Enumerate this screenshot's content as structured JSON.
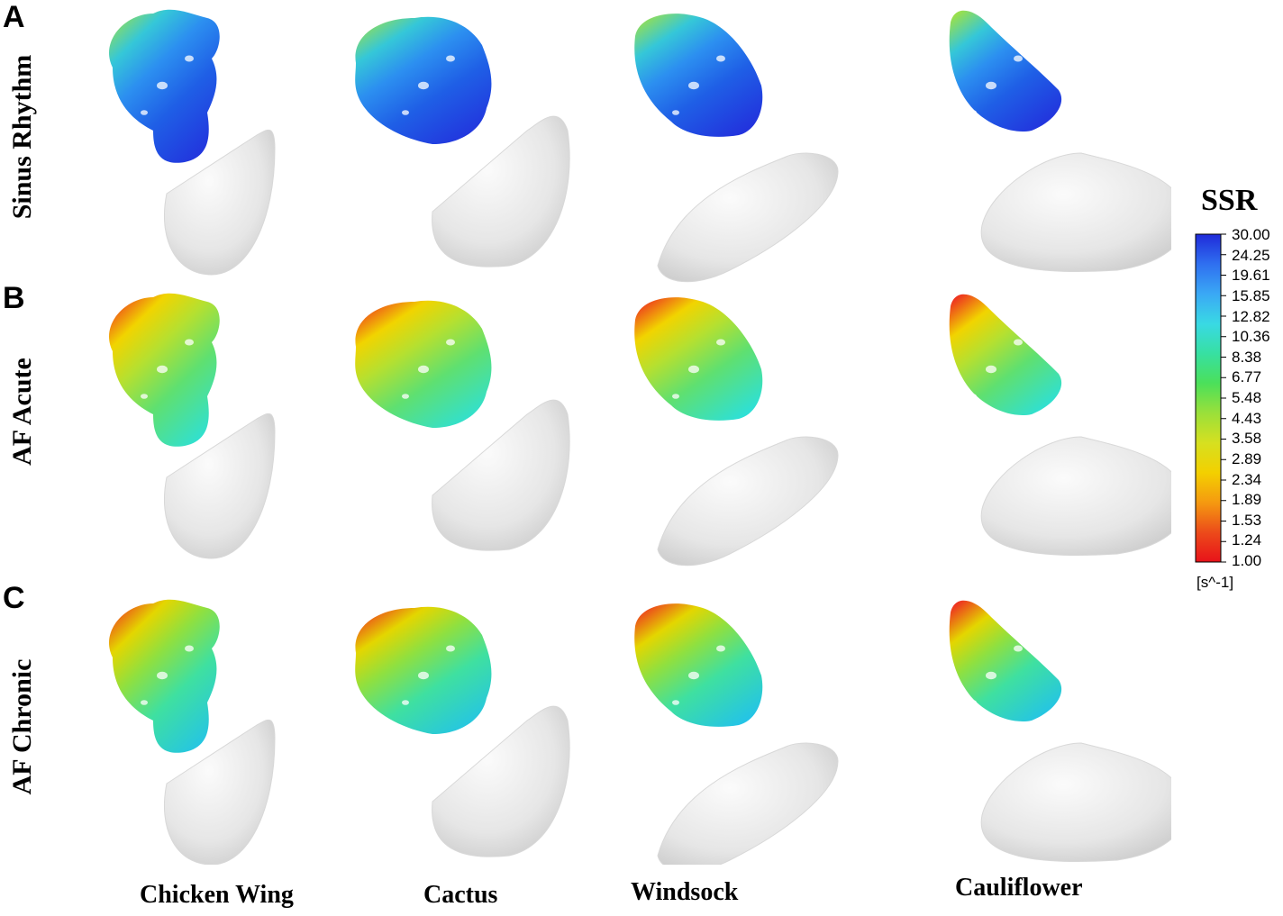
{
  "panels": [
    {
      "letter": "A",
      "row_label": "Sinus Rhythm",
      "stops": [
        [
          "#2233dd",
          0
        ],
        [
          "#1f5fe6",
          0.35
        ],
        [
          "#2c8ff0",
          0.6
        ],
        [
          "#35c7d8",
          0.8
        ],
        [
          "#9be04a",
          1
        ]
      ]
    },
    {
      "letter": "B",
      "row_label": "AF Acute",
      "stops": [
        [
          "#2ee0d6",
          0
        ],
        [
          "#5fe070",
          0.35
        ],
        [
          "#b5e030",
          0.6
        ],
        [
          "#f1d400",
          0.8
        ],
        [
          "#ee3320",
          1
        ]
      ]
    },
    {
      "letter": "C",
      "row_label": "AF Chronic",
      "stops": [
        [
          "#24c4e6",
          0
        ],
        [
          "#3fe0a0",
          0.35
        ],
        [
          "#8fe040",
          0.6
        ],
        [
          "#e4d600",
          0.8
        ],
        [
          "#ee3320",
          1
        ]
      ]
    }
  ],
  "columns": [
    "Chicken Wing",
    "Cactus",
    "Windsock",
    "Cauliflower"
  ],
  "colorbar": {
    "title": "SSR",
    "ticks": [
      "30.00",
      "24.25",
      "19.61",
      "15.85",
      "12.82",
      "10.36",
      "8.38",
      "6.77",
      "5.48",
      "4.43",
      "3.58",
      "2.89",
      "2.34",
      "1.89",
      "1.53",
      "1.24",
      "1.00"
    ],
    "unit": "[s^-1]",
    "colors": [
      "#1f2bd9",
      "#2f6ff0",
      "#3aa8f5",
      "#39d9e4",
      "#37e0a2",
      "#4be05a",
      "#9ae03a",
      "#d6e020",
      "#f3d000",
      "#f59a10",
      "#ec4b1a",
      "#e8121a"
    ]
  }
}
